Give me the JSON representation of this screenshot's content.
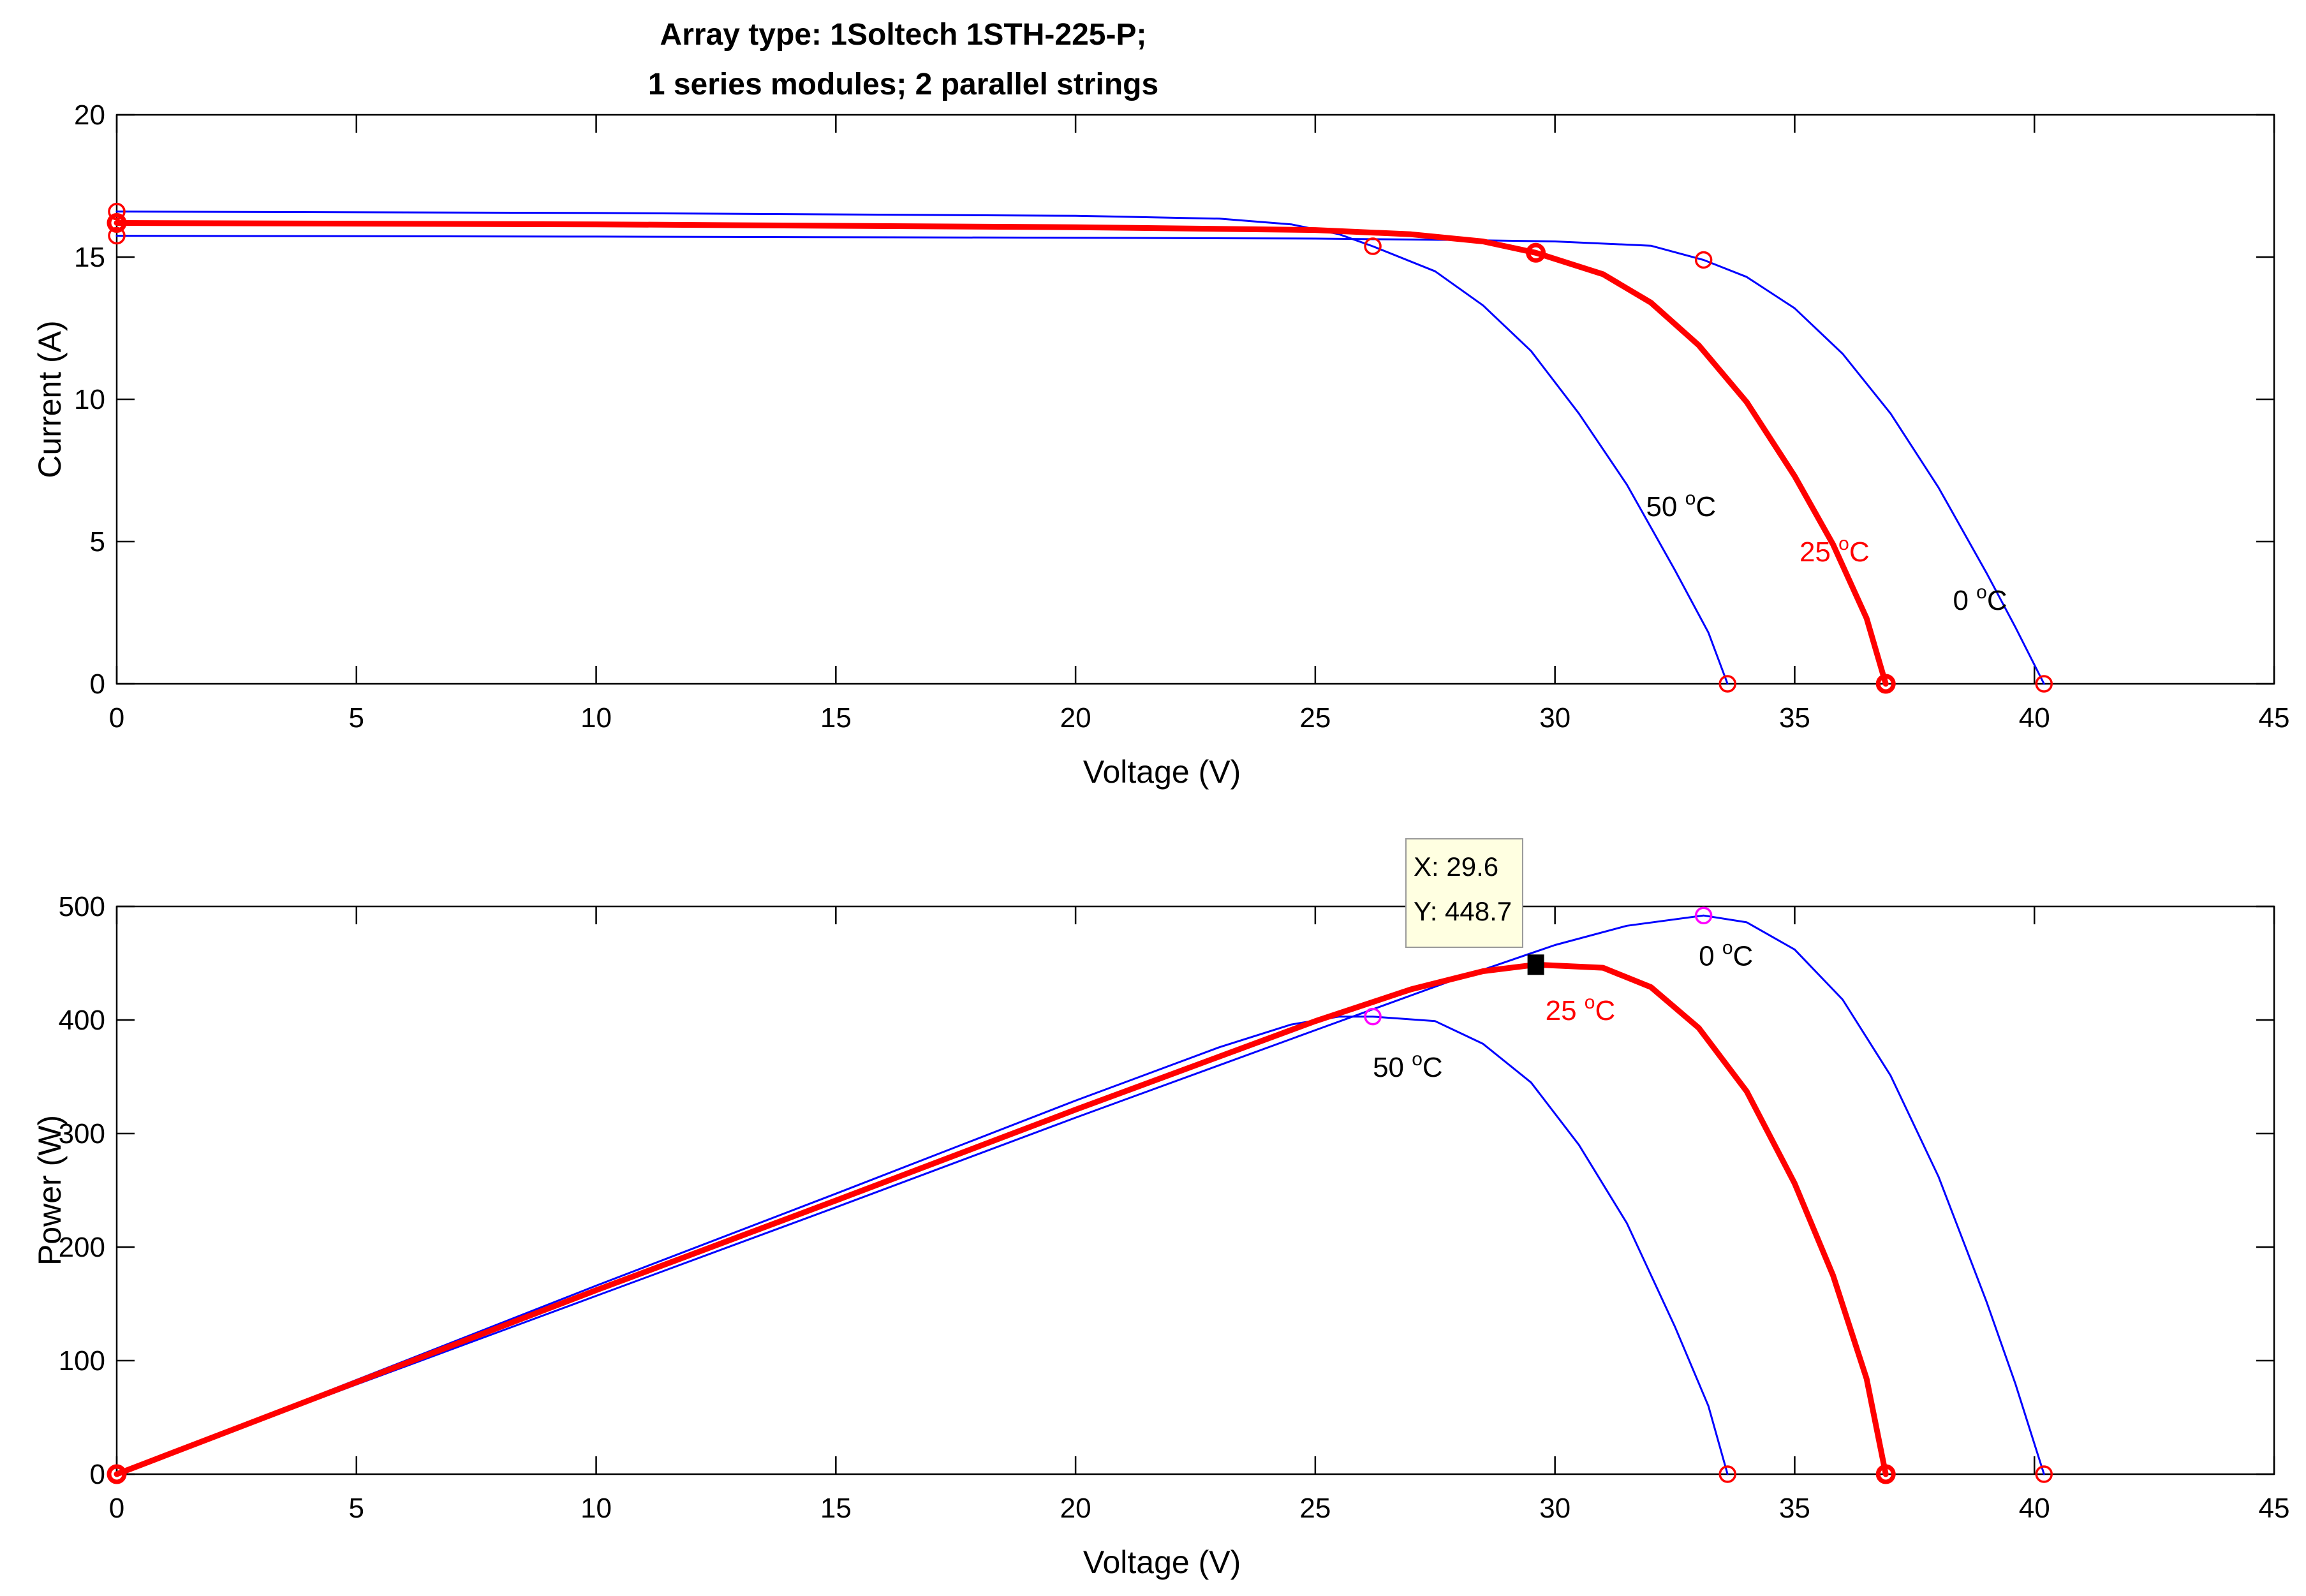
{
  "chart_data": {
    "type": "line",
    "title": [
      "Array type: 1Soltech 1STH-225-P;",
      "1 series modules; 2 parallel strings"
    ],
    "colors": {
      "reference": "#ff0000",
      "other": "#0000ff",
      "marker": "#ff0000",
      "mpp_marker": "#ff00ff",
      "tip_bg": "#ffffe1"
    },
    "panels": [
      {
        "id": "iv",
        "xlabel": "Voltage (V)",
        "ylabel": "Current (A)",
        "xlim": [
          0,
          45
        ],
        "ylim": [
          0,
          20
        ],
        "xticks": [
          0,
          5,
          10,
          15,
          20,
          25,
          30,
          35,
          40,
          45
        ],
        "yticks": [
          0,
          5,
          10,
          15,
          20
        ],
        "series": [
          {
            "name": "0 °C",
            "temp": "0",
            "color": "#0000ff",
            "width": 3,
            "x": [
              0,
              10,
              20,
              25,
              28,
              30,
              32,
              33.1,
              34,
              35,
              36,
              37,
              38,
              39,
              39.6,
              40.2
            ],
            "y": [
              15.75,
              15.72,
              15.68,
              15.65,
              15.6,
              15.55,
              15.4,
              14.9,
              14.3,
              13.2,
              11.6,
              9.5,
              6.9,
              3.9,
              2.0,
              0
            ]
          },
          {
            "name": "25 °C",
            "temp": "25",
            "color": "#ff0000",
            "width": 9,
            "x": [
              0,
              10,
              20,
              25,
              27,
              28.5,
              29.6,
              31,
              32,
              33,
              34,
              35,
              35.8,
              36.5,
              36.9
            ],
            "y": [
              16.2,
              16.15,
              16.05,
              15.95,
              15.8,
              15.55,
              15.15,
              14.4,
              13.4,
              11.9,
              9.9,
              7.3,
              4.9,
              2.3,
              0
            ]
          },
          {
            "name": "50 °C",
            "temp": "50",
            "color": "#0000ff",
            "width": 3,
            "x": [
              0,
              10,
              20,
              23,
              24.5,
              25.5,
              26.2,
              27.5,
              28.5,
              29.5,
              30.5,
              31.5,
              32.5,
              33.2,
              33.6
            ],
            "y": [
              16.6,
              16.55,
              16.45,
              16.35,
              16.15,
              15.8,
              15.38,
              14.5,
              13.3,
              11.7,
              9.5,
              7.0,
              4.0,
              1.8,
              0
            ]
          }
        ],
        "markers": [
          {
            "x": 0,
            "y": 15.75,
            "series": "0"
          },
          {
            "x": 0,
            "y": 16.2,
            "series": "25"
          },
          {
            "x": 0,
            "y": 16.6,
            "series": "50"
          },
          {
            "x": 33.1,
            "y": 14.9,
            "series": "0"
          },
          {
            "x": 29.6,
            "y": 15.15,
            "series": "25"
          },
          {
            "x": 26.2,
            "y": 15.38,
            "series": "50"
          },
          {
            "x": 40.2,
            "y": 0,
            "series": "0"
          },
          {
            "x": 36.9,
            "y": 0,
            "series": "25"
          },
          {
            "x": 33.6,
            "y": 0,
            "series": "50"
          }
        ],
        "annotations": [
          {
            "text": "50 ",
            "sup": "o",
            "unit": "C",
            "x": 31.9,
            "y": 5.9,
            "color": "#000000"
          },
          {
            "text": "25 ",
            "sup": "o",
            "unit": "C",
            "x": 35.1,
            "y": 4.3,
            "color": "#ff0000"
          },
          {
            "text": "0 ",
            "sup": "o",
            "unit": "C",
            "x": 38.3,
            "y": 2.6,
            "color": "#000000"
          }
        ]
      },
      {
        "id": "pv",
        "xlabel": "Voltage (V)",
        "ylabel": "Power (W)",
        "xlim": [
          0,
          45
        ],
        "ylim": [
          0,
          500
        ],
        "xticks": [
          0,
          5,
          10,
          15,
          20,
          25,
          30,
          35,
          40,
          45
        ],
        "yticks": [
          0,
          100,
          200,
          300,
          400,
          500
        ],
        "series": [
          {
            "name": "0 °C",
            "temp": "0",
            "color": "#0000ff",
            "width": 3,
            "x": [
              0,
              5,
              10,
              15,
              20,
              25,
              28,
              30,
              31.5,
              33.1,
              34,
              35,
              36,
              37,
              38,
              39,
              39.6,
              40.2
            ],
            "y": [
              0,
              79,
              157,
              235,
              314,
              391,
              437,
              466,
              483,
              492,
              486,
              462,
              418,
              351,
              262,
              152,
              80,
              0
            ]
          },
          {
            "name": "25 °C",
            "temp": "25",
            "color": "#ff0000",
            "width": 9,
            "x": [
              0,
              5,
              10,
              15,
              20,
              25,
              27,
              28.5,
              29.6,
              31,
              32,
              33,
              34,
              35,
              35.8,
              36.5,
              36.9
            ],
            "y": [
              0,
              81,
              162,
              241,
              321,
              399,
              427,
              443,
              448.7,
              446,
              429,
              393,
              337,
              256,
              175,
              84,
              0
            ]
          },
          {
            "name": "50 °C",
            "temp": "50",
            "color": "#0000ff",
            "width": 3,
            "x": [
              0,
              5,
              10,
              15,
              20,
              23,
              24.5,
              25.5,
              26.2,
              27.5,
              28.5,
              29.5,
              30.5,
              31.5,
              32.5,
              33.2,
              33.6
            ],
            "y": [
              0,
              83,
              166,
              247,
              329,
              376,
              396,
              403,
              403,
              399,
              379,
              345,
              290,
              221,
              130,
              60,
              0
            ]
          }
        ],
        "markers": [
          {
            "x": 0,
            "y": 0,
            "series": "0"
          },
          {
            "x": 0,
            "y": 0,
            "series": "25"
          },
          {
            "x": 0,
            "y": 0,
            "series": "50"
          },
          {
            "x": 33.1,
            "y": 492,
            "series": "0",
            "mpp": true
          },
          {
            "x": 26.2,
            "y": 403,
            "series": "50",
            "mpp": true
          },
          {
            "x": 40.2,
            "y": 0,
            "series": "0"
          },
          {
            "x": 36.9,
            "y": 0,
            "series": "25"
          },
          {
            "x": 33.6,
            "y": 0,
            "series": "50"
          }
        ],
        "annotations": [
          {
            "text": "0 ",
            "sup": "o",
            "unit": "C",
            "x": 33.0,
            "y": 448,
            "color": "#000000"
          },
          {
            "text": "25 ",
            "sup": "o",
            "unit": "C",
            "x": 29.8,
            "y": 400,
            "color": "#ff0000"
          },
          {
            "text": "50 ",
            "sup": "o",
            "unit": "C",
            "x": 26.2,
            "y": 350,
            "color": "#000000"
          }
        ],
        "datatip": {
          "x": 29.6,
          "y": 448.7,
          "lines": [
            "X: 29.6",
            "Y: 448.7"
          ]
        }
      }
    ]
  }
}
